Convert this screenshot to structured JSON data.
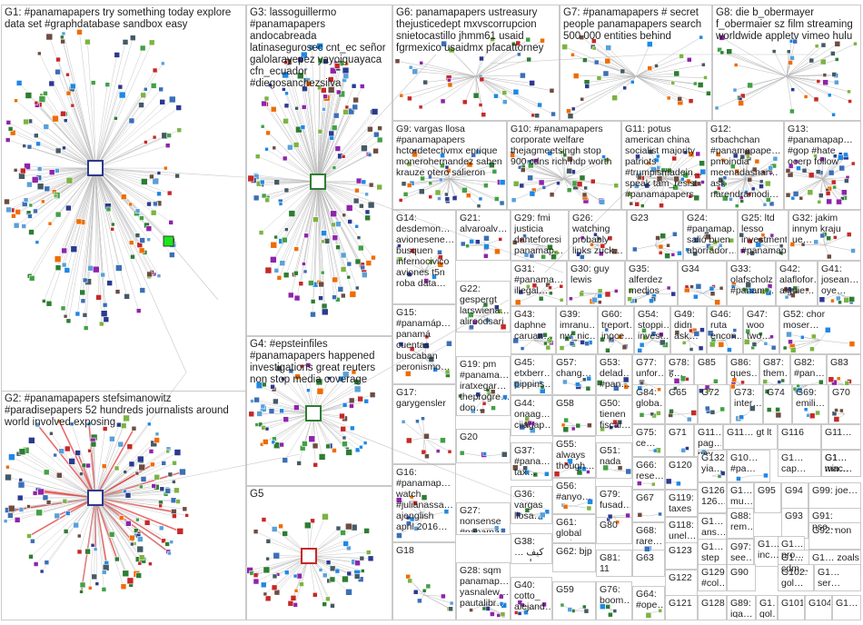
{
  "groups": [
    {
      "id": "G1",
      "label": "G1: #panamapapers try something today explore data set #graphdatabase sandbox easy"
    },
    {
      "id": "G2",
      "label": "G2: #panamapapers stefsimanowitz #paradisepapers 52 hundreds journalists around world involved exposing"
    },
    {
      "id": "G3",
      "label": "G3: lassoguillermo #panamapapers andocabreada latinasegurosec cnt_ec señor galolarayepez yayoiguayaca cfn_ecuador #diegosanchezsilva"
    },
    {
      "id": "G4",
      "label": "G4: #epsteinfiles #panamapapers happened investigations great reuters non stop media coverage"
    },
    {
      "id": "G5",
      "label": "G5"
    },
    {
      "id": "G6",
      "label": "G6: panamapapers ustreasury thejusticedept mxvscorrupcion snietocastillo jhmm61 usaid fgrmexico usaidmx pfacattorney"
    },
    {
      "id": "G7",
      "label": "G7: #panamapapers # secret people panamapapers search 500 000 entities behind"
    },
    {
      "id": "G8",
      "label": "G8: die b_obermayer f_obermaier sz film streaming worldwide appletv vimeo hulu"
    },
    {
      "id": "G9",
      "label": "G9: vargas llosa #panamapapers hctordetectivmx enrique monerohernandez saben krauze otero salieron"
    },
    {
      "id": "G10",
      "label": "G10: #panamapapers corporate welfare thejagmeetsingh stop 900 cdns rich ndp worth"
    },
    {
      "id": "G11",
      "label": "G11: potus american china socialist majority patriots #trumpismadein… speak tam_resist #panamapapers"
    },
    {
      "id": "G12",
      "label": "G12: srbachchan #panamapape… pmoindia meenadasnar… ask narendramodi…"
    },
    {
      "id": "G13",
      "label": "G13: #panamapap… #gop #hate ocerp follow"
    },
    {
      "id": "G14",
      "label": "G14: desdemon… avionesene… busquen infernocivico aviones t5n roba data…"
    },
    {
      "id": "G21",
      "label": "G21: alvaroalv…"
    },
    {
      "id": "G29",
      "label": "G29: fmi justicia danteforesi panamap…"
    },
    {
      "id": "G26",
      "label": "G26: watching probably links zuck…"
    },
    {
      "id": "G23",
      "label": "G23"
    },
    {
      "id": "G24",
      "label": "G24: #panamap… salió buen ahorrador…"
    },
    {
      "id": "G25",
      "label": "G25: ltd lesso investment #panamap…"
    },
    {
      "id": "G32",
      "label": "G32: jakim innym kraju ue…"
    },
    {
      "id": "G31",
      "label": "G31: #panama… illegal…"
    },
    {
      "id": "G30",
      "label": "G30: guy lewis"
    },
    {
      "id": "G35",
      "label": "G35: alferdez medios"
    },
    {
      "id": "G34",
      "label": "G34"
    },
    {
      "id": "G33",
      "label": "G33: olafscholz #panam…"
    },
    {
      "id": "G42",
      "label": "G42: alaflofor… alguie…"
    },
    {
      "id": "G41",
      "label": "G41: josean… oye…"
    },
    {
      "id": "G22",
      "label": "G22: gespergt larswiena… aliroodsari anonnew…"
    },
    {
      "id": "G15",
      "label": "G15: #panamáp… panamá cuentas buscaban peronismo…"
    },
    {
      "id": "G43",
      "label": "G43: daphne caruan…"
    },
    {
      "id": "G39",
      "label": "G39: imranu… nw_nic…"
    },
    {
      "id": "G60",
      "label": "G60: treport… inoce…"
    },
    {
      "id": "G54",
      "label": "G54: stoppi… invest…"
    },
    {
      "id": "G49",
      "label": "G49: didn ask…"
    },
    {
      "id": "G46",
      "label": "G46: ruta encon…"
    },
    {
      "id": "G47",
      "label": "G47: woo two…"
    },
    {
      "id": "G52",
      "label": "G52: chor moser…"
    },
    {
      "id": "G19",
      "label": "G19: pm #panama… iratxegar… theprogre… don…"
    },
    {
      "id": "G45",
      "label": "G45: etxberr… pippins…"
    },
    {
      "id": "G57",
      "label": "G57: chang…"
    },
    {
      "id": "G53",
      "label": "G53: delad… #pan…"
    },
    {
      "id": "G77",
      "label": "G77: unfor…"
    },
    {
      "id": "G78",
      "label": "G78: ह…"
    },
    {
      "id": "G85",
      "label": "G85"
    },
    {
      "id": "G86",
      "label": "G86: ques…"
    },
    {
      "id": "G87",
      "label": "G87: them…"
    },
    {
      "id": "G82",
      "label": "G82: #pan…"
    },
    {
      "id": "G83",
      "label": "G83"
    },
    {
      "id": "G17",
      "label": "G17: garygensler"
    },
    {
      "id": "G44",
      "label": "G44: onaag… ciiagap…"
    },
    {
      "id": "G58",
      "label": "G58"
    },
    {
      "id": "G50",
      "label": "G50: tienen fiscal…"
    },
    {
      "id": "G84",
      "label": "G84: globa…"
    },
    {
      "id": "G65",
      "label": "G65"
    },
    {
      "id": "G72",
      "label": "G72"
    },
    {
      "id": "G73",
      "label": "G73: inter…"
    },
    {
      "id": "G74",
      "label": "G74"
    },
    {
      "id": "G69",
      "label": "G69: emili…"
    },
    {
      "id": "G70",
      "label": "G70"
    },
    {
      "id": "G20",
      "label": "G20"
    },
    {
      "id": "G55",
      "label": "G55: always though…"
    },
    {
      "id": "G75",
      "label": "G75: ce…"
    },
    {
      "id": "G71",
      "label": "G71"
    },
    {
      "id": "G11x",
      "label": "G11… pag… nev…"
    },
    {
      "id": "G11y",
      "label": "G11… gt lt"
    },
    {
      "id": "G116",
      "label": "G116"
    },
    {
      "id": "G11z",
      "label": "G11…"
    },
    {
      "id": "G37",
      "label": "G37: #pana… tax…"
    },
    {
      "id": "G51",
      "label": "G51: nada"
    },
    {
      "id": "G66",
      "label": "G66: rese…"
    },
    {
      "id": "G120",
      "label": "G120"
    },
    {
      "id": "G132",
      "label": "G132: yia…"
    },
    {
      "id": "G10x",
      "label": "G10… #pa…"
    },
    {
      "id": "G1xa",
      "label": "G1… cap…"
    },
    {
      "id": "G1xb",
      "label": "G1… mac…"
    },
    {
      "id": "G1xc",
      "label": "G1… win…"
    },
    {
      "id": "G16",
      "label": "G16: #panamap… watch #julianassa… ajenglish april 2016…"
    },
    {
      "id": "G36",
      "label": "G36: vargas llosa…"
    },
    {
      "id": "G56",
      "label": "G56: #anyo…"
    },
    {
      "id": "G79",
      "label": "G79: fusad…"
    },
    {
      "id": "G67",
      "label": "G67"
    },
    {
      "id": "G126",
      "label": "G126: 126…"
    },
    {
      "id": "G1xd",
      "label": "G1… mu…"
    },
    {
      "id": "G95",
      "label": "G95"
    },
    {
      "id": "G94",
      "label": "G94"
    },
    {
      "id": "G99",
      "label": "G99: joe…"
    },
    {
      "id": "G119",
      "label": "G119: taxes"
    },
    {
      "id": "G88",
      "label": "G88: rem…"
    },
    {
      "id": "G93",
      "label": "G93"
    },
    {
      "id": "G91",
      "label": "G91: nse…"
    },
    {
      "id": "G27",
      "label": "G27: nonsense #panama… offshore…"
    },
    {
      "id": "G61",
      "label": "G61: global #prime…"
    },
    {
      "id": "G80",
      "label": "G80"
    },
    {
      "id": "G68",
      "label": "G68: rare…"
    },
    {
      "id": "G118",
      "label": "G118: unel…"
    },
    {
      "id": "G1xe",
      "label": "G1… ans…"
    },
    {
      "id": "G1xf",
      "label": "G1… inc…"
    },
    {
      "id": "G1xg",
      "label": "G1… pro…"
    },
    {
      "id": "G92",
      "label": "G92: non"
    },
    {
      "id": "G38",
      "label": "G38: كيف … لندن …"
    },
    {
      "id": "G62",
      "label": "G62: bjp"
    },
    {
      "id": "G123",
      "label": "G123"
    },
    {
      "id": "G1xh",
      "label": "G1… step"
    },
    {
      "id": "G97",
      "label": "G97: see…"
    },
    {
      "id": "G1xi",
      "label": "G1… cdm…"
    },
    {
      "id": "G1xj",
      "label": "G1… zoals"
    },
    {
      "id": "G18",
      "label": "G18"
    },
    {
      "id": "G28",
      "label": "G28: sqm panamap… yasnalew… pautalibr…"
    },
    {
      "id": "G81",
      "label": "G81: 11"
    },
    {
      "id": "G63",
      "label": "G63"
    },
    {
      "id": "G122",
      "label": "G122"
    },
    {
      "id": "G129",
      "label": "G129: #col…"
    },
    {
      "id": "G90",
      "label": "G90"
    },
    {
      "id": "G102",
      "label": "G102: gol…"
    },
    {
      "id": "G1xk",
      "label": "G1… ser…"
    },
    {
      "id": "G40",
      "label": "G40: cotto_ alejand…"
    },
    {
      "id": "G59",
      "label": "G59"
    },
    {
      "id": "G76",
      "label": "G76: boom…"
    },
    {
      "id": "G64",
      "label": "G64: #ope…"
    },
    {
      "id": "G121",
      "label": "G121"
    },
    {
      "id": "G128",
      "label": "G128"
    },
    {
      "id": "G89",
      "label": "G89: iqa…"
    },
    {
      "id": "G1xl",
      "label": "G1… gol…"
    },
    {
      "id": "G101",
      "label": "G101"
    },
    {
      "id": "G104",
      "label": "G104"
    },
    {
      "id": "G1xm",
      "label": "G1…"
    }
  ],
  "colors": {
    "border": "#bdbdbd",
    "edge": "#b9b9b9",
    "edge_red": "#e23a3a",
    "node_fill": "#2d3a8c",
    "hub_green": "#1ee31e"
  }
}
